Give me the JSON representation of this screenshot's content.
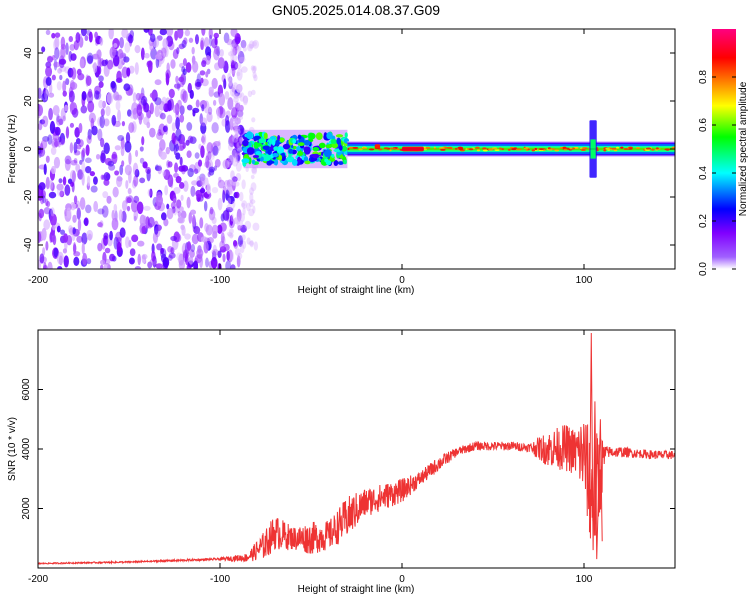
{
  "title": "GN05.2025.014.08.37.G09",
  "chart_data": [
    {
      "type": "heatmap",
      "xlabel": "Height of straight line (km)",
      "ylabel": "Frequency (Hz)",
      "xlim": [
        -200,
        150
      ],
      "ylim": [
        -50,
        50
      ],
      "x_ticks": [
        "-200",
        "-100",
        "0",
        "100"
      ],
      "y_ticks": [
        "-40",
        "-20",
        "0",
        "20",
        "40"
      ],
      "colorbar": {
        "label": "Normalized spectral amplitude",
        "range": [
          0.0,
          1.0
        ],
        "ticks": [
          "0.0",
          "0.2",
          "0.4",
          "0.6",
          "0.8"
        ],
        "colors": [
          "#ffffff",
          "#8000ff",
          "#0000ff",
          "#00ffff",
          "#00ff00",
          "#ffff00",
          "#ff8000",
          "#ff0000",
          "#ff00a0"
        ]
      },
      "regions": [
        {
          "x": [
            -200,
            -87
          ],
          "freq_range": [
            -50,
            50
          ],
          "amplitude": 0.12,
          "pattern": "scattered noise"
        },
        {
          "x": [
            -87,
            -30
          ],
          "freq_center": 0,
          "freq_halfwidth": 6,
          "amplitude": 0.45
        },
        {
          "x": [
            -30,
            150
          ],
          "freq_center": 0,
          "freq_halfwidth": 2.5,
          "amplitude": 0.55
        },
        {
          "x": [
            -15,
            -12
          ],
          "freq_center": 1,
          "amplitude": 0.85
        },
        {
          "x": [
            0,
            12
          ],
          "freq_center": 0,
          "amplitude": 0.9
        },
        {
          "x": [
            103,
            107
          ],
          "freq_range": [
            -12,
            12
          ],
          "amplitude": 0.2,
          "pattern": "vertical spike"
        }
      ]
    },
    {
      "type": "line",
      "xlabel": "Height of straight line (km)",
      "ylabel": "SNR (10 * v/v)",
      "xlim": [
        -200,
        150
      ],
      "ylim": [
        0,
        8000
      ],
      "x_ticks": [
        "-200",
        "-100",
        "0",
        "100"
      ],
      "y_ticks": [
        "2000",
        "4000",
        "6000"
      ],
      "color": "#ee3333",
      "series": [
        {
          "x": [
            -200,
            -150,
            -100,
            -85,
            -75,
            -70,
            -60,
            -50,
            -40,
            -30,
            -20,
            -10,
            0,
            10,
            20,
            30,
            40,
            50,
            60,
            70,
            80,
            90,
            95,
            100,
            105,
            108,
            112,
            120,
            130,
            140,
            150
          ],
          "y": [
            150,
            200,
            300,
            350,
            800,
            1200,
            1000,
            1000,
            1100,
            1700,
            2200,
            2400,
            2600,
            3000,
            3500,
            3900,
            4100,
            4100,
            4100,
            4050,
            4000,
            4050,
            3900,
            3800,
            2200,
            3000,
            3900,
            3900,
            3850,
            3800,
            3800
          ],
          "noise": [
            20,
            25,
            40,
            150,
            500,
            600,
            400,
            550,
            500,
            700,
            500,
            450,
            400,
            250,
            250,
            150,
            150,
            150,
            150,
            150,
            600,
            800,
            800,
            1500,
            2000,
            1800,
            200,
            180,
            150,
            150,
            150
          ]
        }
      ]
    }
  ]
}
